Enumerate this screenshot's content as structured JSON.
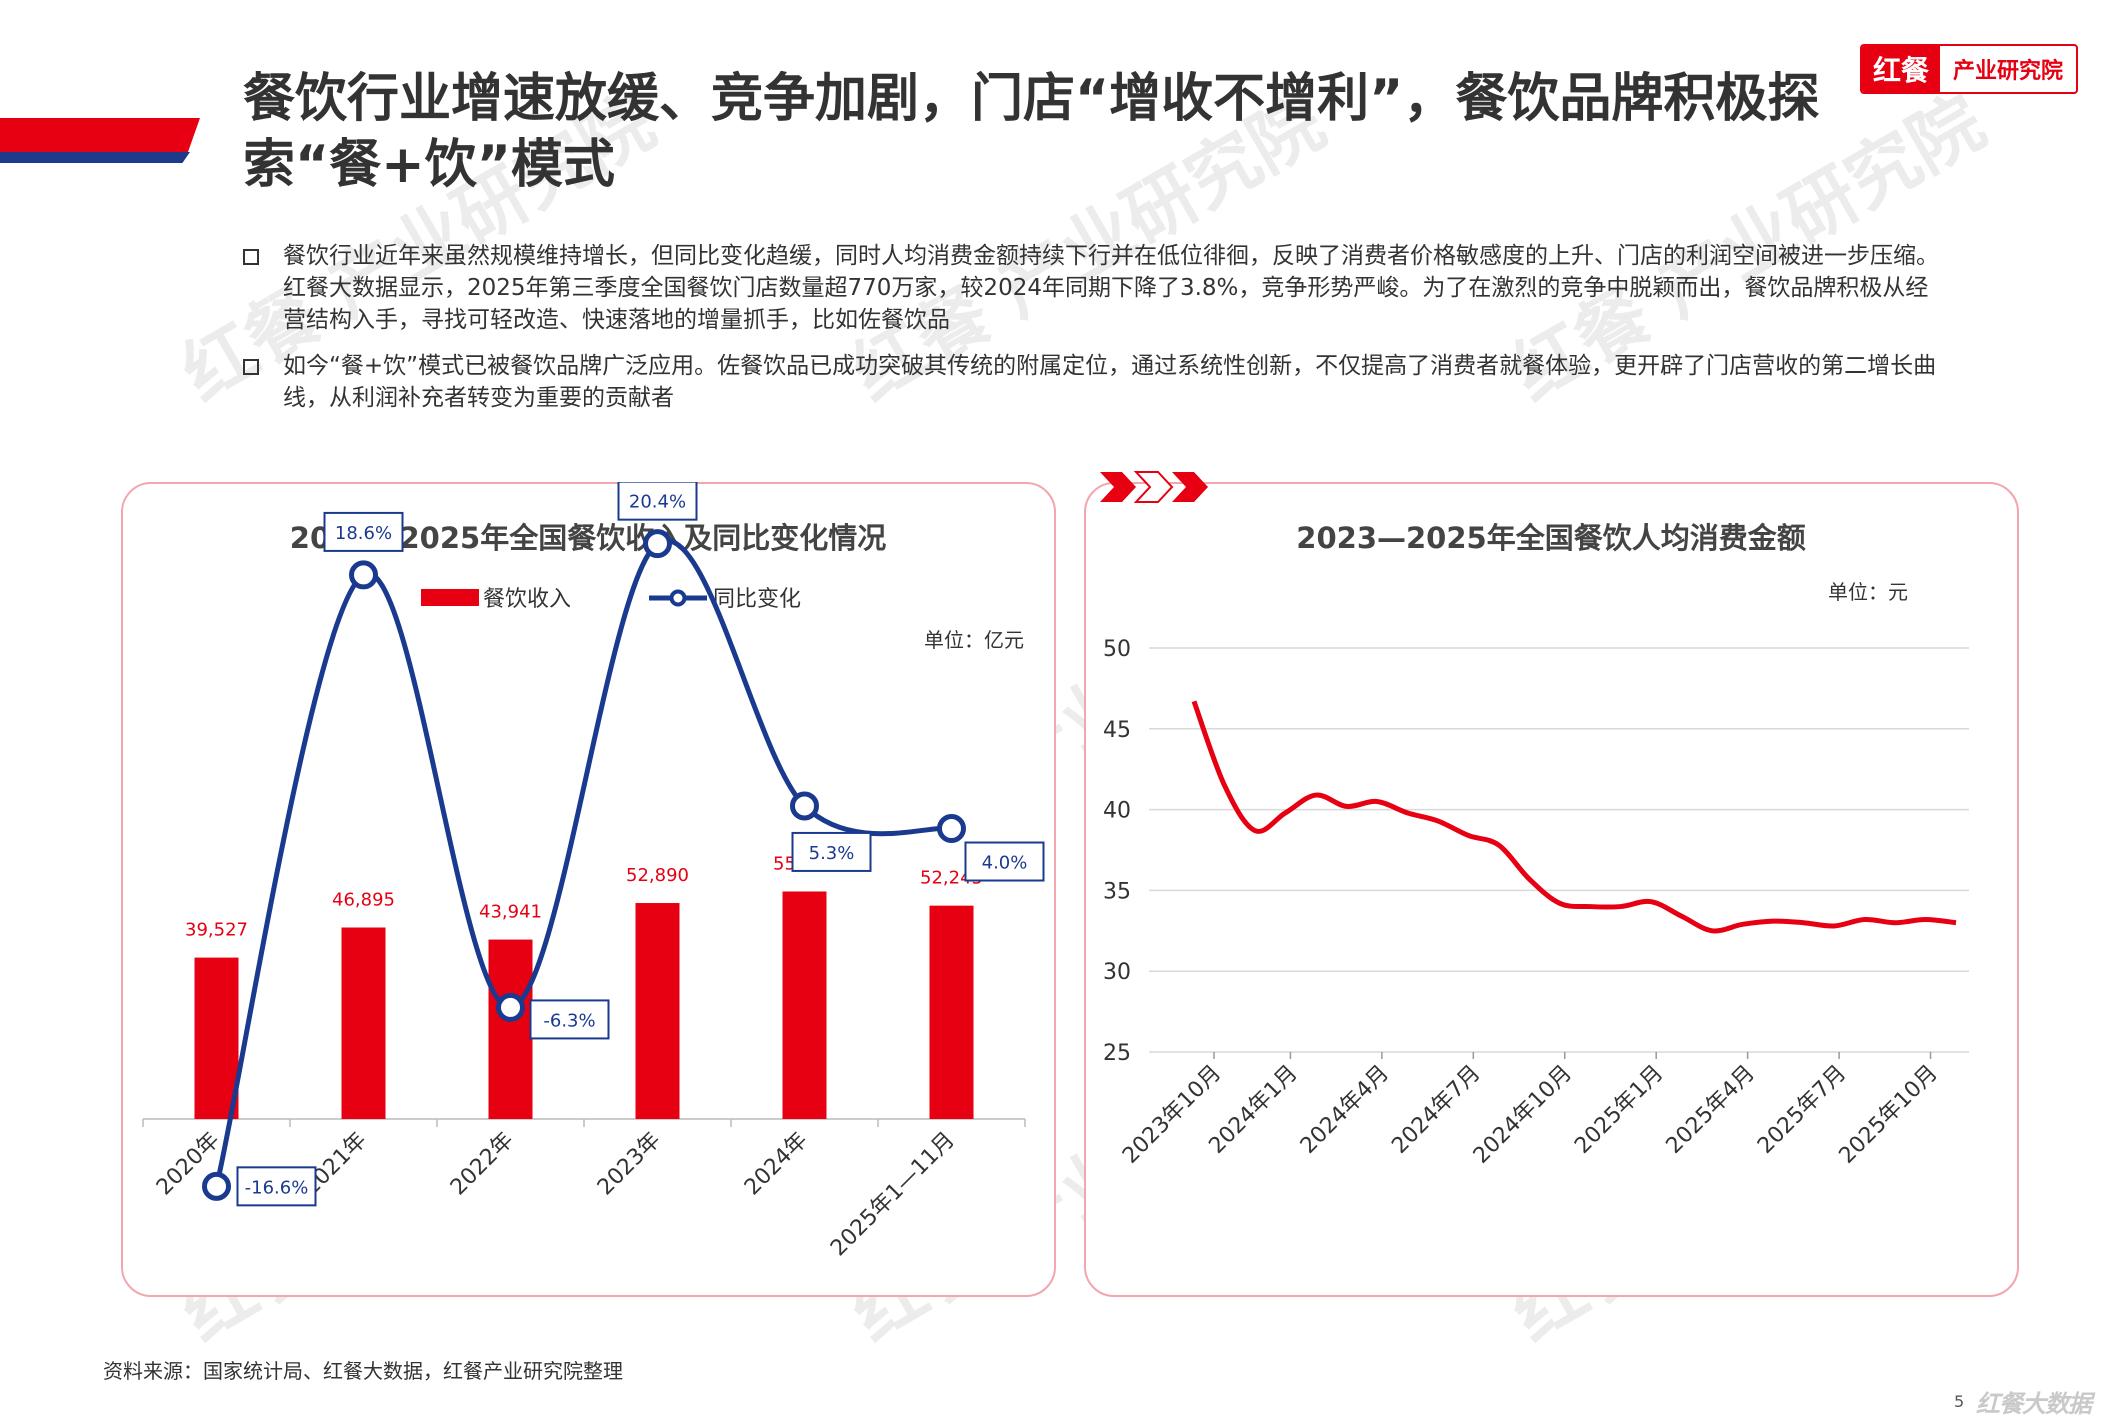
{
  "header": {
    "title": "餐饮行业增速放缓、竞争加剧，门店“增收不增利”，餐饮品牌积极探索“餐+饮”模式",
    "brand_mark": "红餐",
    "brand_text": "产业研究院"
  },
  "bullets": [
    "餐饮行业近年来虽然规模维持增长，但同比变化趋缓，同时人均消费金额持续下行并在低位徘徊，反映了消费者价格敏感度的上升、门店的利润空间被进一步压缩。红餐大数据显示，2025年第三季度全国餐饮门店数量超770万家，较2024年同期下降了3.8%，竞争形势严峻。为了在激烈的竞争中脱颖而出，餐饮品牌积极从经营结构入手，寻找可轻改造、快速落地的增量抓手，比如佐餐饮品",
    "如今“餐+饮”模式已被餐饮品牌广泛应用。佐餐饮品已成功突破其传统的附属定位，通过系统性创新，不仅提高了消费者就餐体验，更开辟了门店营收的第二增长曲线，从利润补充者转变为重要的贡献者"
  ],
  "chart_data": [
    {
      "type": "bar",
      "title": "2020—2025年全国餐饮收入及同比变化情况",
      "unit_label": "单位：亿元",
      "categories": [
        "2020年",
        "2021年",
        "2022年",
        "2023年",
        "2024年",
        "2025年1—11月"
      ],
      "series": [
        {
          "name": "餐饮收入",
          "type": "bar",
          "values": [
            39527,
            46895,
            43941,
            52890,
            55718,
            52245
          ],
          "labels": [
            "39,527",
            "46,895",
            "43,941",
            "52,890",
            "55,718",
            "52,245"
          ],
          "color": "#e60012"
        },
        {
          "name": "同比变化",
          "type": "line",
          "values": [
            -16.6,
            18.6,
            -6.3,
            20.4,
            5.3,
            4.0
          ],
          "labels": [
            "-16.6%",
            "18.6%",
            "-6.3%",
            "20.4%",
            "5.3%",
            "4.0%"
          ],
          "color": "#1a3a8f"
        }
      ],
      "legend": "top",
      "grid": false
    },
    {
      "type": "line",
      "title": "2023—2025年全国餐饮人均消费金额",
      "unit_label": "单位：元",
      "x_ticks": [
        "2023年10月",
        "2024年1月",
        "2024年4月",
        "2024年7月",
        "2024年10月",
        "2025年1月",
        "2025年4月",
        "2025年7月",
        "2025年10月"
      ],
      "ylim": [
        25,
        50
      ],
      "y_ticks": [
        25,
        30,
        35,
        40,
        45,
        50
      ],
      "grid": true,
      "series": [
        {
          "color": "#e60012",
          "x": [
            "2023年10月",
            "2023年11月",
            "2023年12月",
            "2024年1月",
            "2024年2月",
            "2024年3月",
            "2024年4月",
            "2024年5月",
            "2024年6月",
            "2024年7月",
            "2024年8月",
            "2024年9月",
            "2024年10月",
            "2024年11月",
            "2024年12月",
            "2025年1月",
            "2025年2月",
            "2025年3月",
            "2025年4月",
            "2025年5月",
            "2025年6月",
            "2025年7月",
            "2025年8月",
            "2025年9月",
            "2025年10月",
            "2025年11月"
          ],
          "values": [
            46.7,
            41.5,
            38.7,
            39.8,
            40.9,
            40.2,
            40.5,
            39.8,
            39.3,
            38.4,
            37.8,
            35.7,
            34.2,
            34.0,
            34.0,
            34.3,
            33.4,
            32.5,
            32.9,
            33.1,
            33.0,
            32.8,
            33.2,
            33.0,
            33.2,
            33.0
          ]
        }
      ]
    }
  ],
  "footer": {
    "source": "资料来源：国家统计局、红餐大数据，红餐产业研究院整理",
    "page_number": "5",
    "logo_text": "红餐大数据"
  }
}
